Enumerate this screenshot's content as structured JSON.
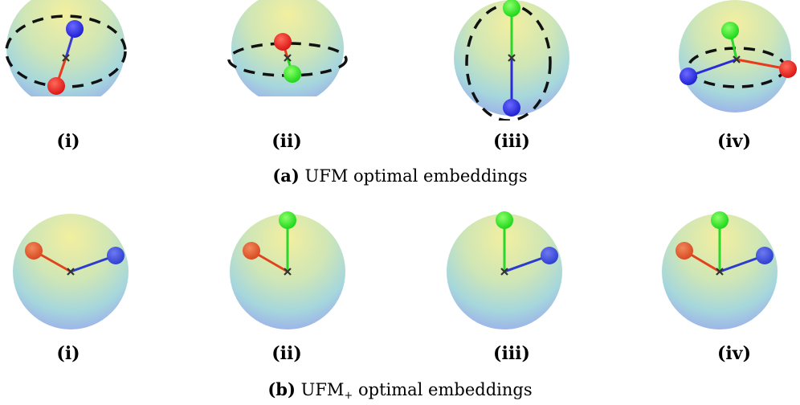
{
  "figure": {
    "row_a": {
      "panel_labels": [
        "(i)",
        "(ii)",
        "(iii)",
        "(iv)"
      ],
      "caption": {
        "tag": "(a)",
        "text": "UFM optimal embeddings"
      }
    },
    "row_b": {
      "panel_labels": [
        "(i)",
        "(ii)",
        "(iii)",
        "(iv)"
      ],
      "caption": {
        "tag": "(b)",
        "text": "UFM",
        "subscript": "+",
        "suffix": " optimal embeddings"
      }
    }
  },
  "colors": {
    "red": "#ee1b1b",
    "green": "#1ee81e",
    "blue": "#2323dd",
    "dashed_circle": "#111111",
    "center_marker": "#333333"
  }
}
